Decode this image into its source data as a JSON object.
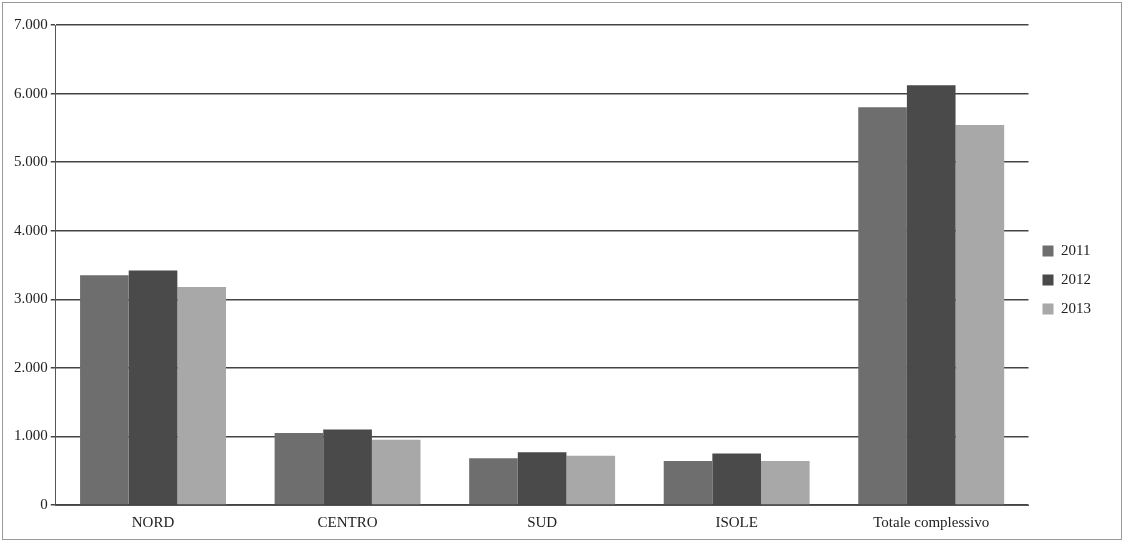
{
  "chart_data": {
    "type": "bar",
    "categories": [
      "NORD",
      "CENTRO",
      "SUD",
      "ISOLE",
      "Totale complessivo"
    ],
    "series": [
      {
        "name": "2011",
        "color": "#6e6e6e",
        "values": [
          3350,
          1050,
          680,
          640,
          5800
        ]
      },
      {
        "name": "2012",
        "color": "#4a4a4a",
        "values": [
          3420,
          1100,
          770,
          750,
          6120
        ]
      },
      {
        "name": "2013",
        "color": "#a8a8a8",
        "values": [
          3180,
          950,
          720,
          640,
          5540
        ]
      }
    ],
    "ylim": [
      0,
      7000
    ],
    "yticks": [
      {
        "value": 0,
        "label": "0"
      },
      {
        "value": 1000,
        "label": "1.000"
      },
      {
        "value": 2000,
        "label": "2.000"
      },
      {
        "value": 3000,
        "label": "3.000"
      },
      {
        "value": 4000,
        "label": "4.000"
      },
      {
        "value": 5000,
        "label": "5.000"
      },
      {
        "value": 6000,
        "label": "6.000"
      },
      {
        "value": 7000,
        "label": "7.000"
      }
    ],
    "grid": "y",
    "legend": "right"
  }
}
